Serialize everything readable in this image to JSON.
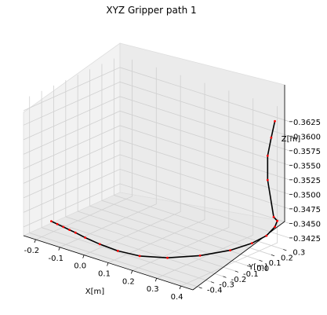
{
  "chart_data": {
    "type": "line3d",
    "title": "XYZ Gripper path 1",
    "xlabel": "X[m]",
    "ylabel": "Y[m]",
    "zlabel": "Z[m]",
    "x_ticks": [
      "-0.2",
      "-0.1",
      "0.0",
      "0.1",
      "0.2",
      "0.3",
      "0.4"
    ],
    "y_ticks": [
      "-0.4",
      "-0.3",
      "-0.2",
      "-0.1",
      "0.0",
      "0.1",
      "0.2",
      "0.3"
    ],
    "z_ticks": [
      "0.3425",
      "0.3450",
      "0.3475",
      "0.3500",
      "0.3525",
      "0.3550",
      "0.3575",
      "0.3600",
      "0.3625"
    ],
    "xlim": [
      -0.25,
      0.45
    ],
    "ylim": [
      -0.45,
      0.35
    ],
    "zlim": [
      0.341,
      0.3645
    ],
    "grid": true,
    "line_color": "#000000",
    "marker_color": "#ff0000",
    "series": [
      {
        "x": [
          -0.22,
          -0.19,
          -0.16,
          -0.13,
          -0.1,
          -0.05,
          0.02,
          0.1,
          0.18,
          0.26,
          0.33,
          0.38,
          0.41,
          0.43,
          0.44,
          0.445,
          0.44,
          0.43,
          0.425,
          0.43,
          0.435
        ],
        "y": [
          -0.28,
          -0.29,
          -0.3,
          -0.31,
          -0.32,
          -0.34,
          -0.36,
          -0.37,
          -0.35,
          -0.28,
          -0.15,
          0.0,
          0.12,
          0.2,
          0.25,
          0.26,
          0.24,
          0.21,
          0.22,
          0.24,
          0.26
        ],
        "z": [
          0.3423,
          0.3423,
          0.3423,
          0.3423,
          0.3423,
          0.3423,
          0.3423,
          0.3423,
          0.3423,
          0.3424,
          0.3425,
          0.3427,
          0.3432,
          0.344,
          0.3452,
          0.3462,
          0.347,
          0.3535,
          0.3575,
          0.3605,
          0.3632
        ]
      }
    ]
  }
}
